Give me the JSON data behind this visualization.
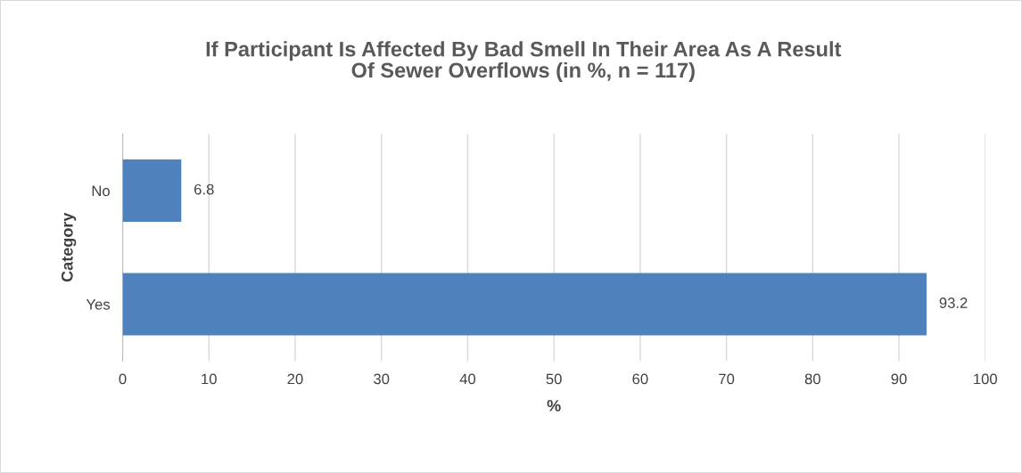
{
  "chart_data": {
    "type": "bar",
    "orientation": "horizontal",
    "title": "If Participant Is Affected By Bad Smell In Their Area As A Result\nOf Sewer Overflows (in %, n = 117)",
    "xlabel": "%",
    "ylabel": "Category",
    "categories": [
      "No",
      "Yes"
    ],
    "values": [
      6.8,
      93.2
    ],
    "color": "#4f81bd",
    "xlim": [
      0,
      100
    ],
    "xticks": [
      0,
      10,
      20,
      30,
      40,
      50,
      60,
      70,
      80,
      90,
      100
    ],
    "grid": "x",
    "data_labels": true
  }
}
